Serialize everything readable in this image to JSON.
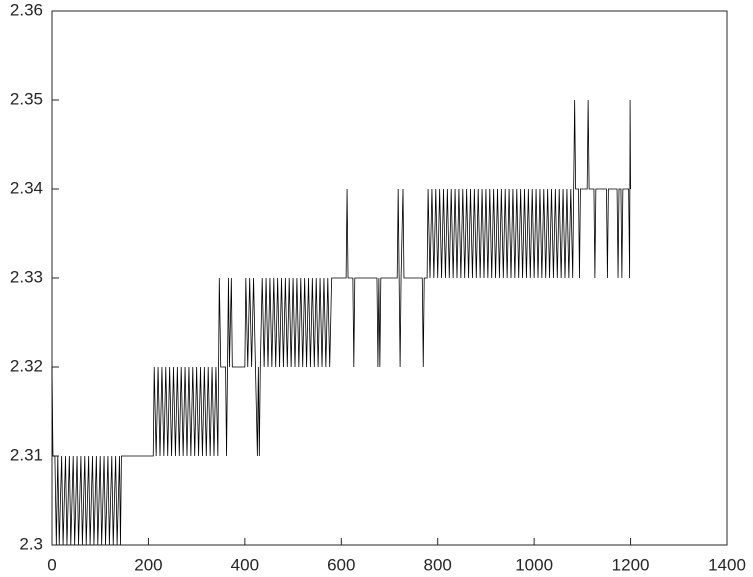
{
  "chart_data": {
    "type": "line",
    "color": "#000000",
    "xlim": [
      0,
      1400
    ],
    "xticks": [
      0,
      200,
      400,
      600,
      800,
      1000,
      1200,
      1400
    ],
    "ylim": [
      2.3,
      2.36
    ],
    "yticks": [
      2.3,
      2.31,
      2.32,
      2.33,
      2.34,
      2.35,
      2.36
    ],
    "grid": false,
    "x": [
      0,
      2,
      6,
      9,
      12,
      15,
      20,
      23,
      28,
      31,
      36,
      39,
      44,
      47,
      52,
      55,
      60,
      63,
      68,
      71,
      76,
      79,
      84,
      87,
      92,
      95,
      100,
      103,
      108,
      111,
      116,
      119,
      124,
      127,
      132,
      135,
      140,
      142,
      144,
      210,
      212,
      216,
      220,
      224,
      228,
      232,
      236,
      240,
      244,
      248,
      252,
      256,
      260,
      264,
      268,
      272,
      276,
      280,
      284,
      288,
      292,
      296,
      300,
      304,
      308,
      312,
      316,
      320,
      324,
      328,
      332,
      336,
      340,
      344,
      347,
      350,
      360,
      362,
      364,
      366,
      368,
      372,
      374,
      400,
      402,
      406,
      410,
      414,
      418,
      422,
      426,
      428,
      430,
      432,
      436,
      440,
      444,
      448,
      452,
      456,
      460,
      464,
      468,
      472,
      476,
      480,
      484,
      488,
      492,
      496,
      500,
      504,
      508,
      512,
      516,
      520,
      524,
      528,
      532,
      536,
      540,
      544,
      548,
      552,
      556,
      560,
      564,
      568,
      572,
      576,
      580,
      610,
      612,
      614,
      624,
      626,
      628,
      674,
      676,
      678,
      680,
      682,
      716,
      718,
      720,
      722,
      724,
      728,
      730,
      768,
      770,
      772,
      778,
      780,
      784,
      788,
      792,
      796,
      800,
      804,
      808,
      812,
      816,
      820,
      824,
      828,
      832,
      836,
      840,
      844,
      848,
      852,
      856,
      860,
      864,
      868,
      872,
      876,
      880,
      884,
      888,
      892,
      896,
      900,
      904,
      908,
      912,
      916,
      920,
      924,
      928,
      932,
      936,
      940,
      944,
      948,
      952,
      956,
      960,
      964,
      968,
      972,
      976,
      980,
      984,
      988,
      992,
      996,
      1000,
      1004,
      1008,
      1012,
      1016,
      1020,
      1024,
      1028,
      1032,
      1036,
      1040,
      1044,
      1048,
      1052,
      1056,
      1060,
      1064,
      1068,
      1072,
      1076,
      1080,
      1084,
      1086,
      1092,
      1094,
      1096,
      1110,
      1112,
      1114,
      1124,
      1126,
      1128,
      1150,
      1152,
      1154,
      1172,
      1174,
      1176,
      1180,
      1182,
      1184,
      1196,
      1198,
      1199,
      1200
    ],
    "values": [
      2.32,
      2.31,
      2.31,
      2.3,
      2.31,
      2.3,
      2.31,
      2.3,
      2.31,
      2.3,
      2.31,
      2.3,
      2.31,
      2.3,
      2.31,
      2.3,
      2.31,
      2.3,
      2.31,
      2.3,
      2.31,
      2.3,
      2.31,
      2.3,
      2.31,
      2.3,
      2.31,
      2.3,
      2.31,
      2.3,
      2.31,
      2.3,
      2.31,
      2.3,
      2.31,
      2.3,
      2.31,
      2.3,
      2.31,
      2.31,
      2.32,
      2.31,
      2.32,
      2.31,
      2.32,
      2.31,
      2.32,
      2.31,
      2.32,
      2.31,
      2.32,
      2.31,
      2.32,
      2.31,
      2.32,
      2.31,
      2.32,
      2.31,
      2.32,
      2.31,
      2.32,
      2.31,
      2.32,
      2.31,
      2.32,
      2.31,
      2.32,
      2.31,
      2.32,
      2.31,
      2.32,
      2.31,
      2.32,
      2.31,
      2.33,
      2.32,
      2.32,
      2.31,
      2.32,
      2.33,
      2.32,
      2.33,
      2.32,
      2.32,
      2.33,
      2.32,
      2.33,
      2.32,
      2.33,
      2.32,
      2.31,
      2.32,
      2.31,
      2.32,
      2.33,
      2.32,
      2.33,
      2.32,
      2.33,
      2.32,
      2.33,
      2.32,
      2.33,
      2.32,
      2.33,
      2.32,
      2.33,
      2.32,
      2.33,
      2.32,
      2.33,
      2.32,
      2.33,
      2.32,
      2.33,
      2.32,
      2.33,
      2.32,
      2.33,
      2.32,
      2.33,
      2.32,
      2.33,
      2.32,
      2.33,
      2.32,
      2.33,
      2.32,
      2.33,
      2.32,
      2.33,
      2.33,
      2.34,
      2.33,
      2.33,
      2.32,
      2.33,
      2.33,
      2.32,
      2.33,
      2.32,
      2.33,
      2.33,
      2.34,
      2.33,
      2.32,
      2.33,
      2.34,
      2.33,
      2.33,
      2.32,
      2.33,
      2.33,
      2.34,
      2.33,
      2.34,
      2.33,
      2.34,
      2.33,
      2.34,
      2.33,
      2.34,
      2.33,
      2.34,
      2.33,
      2.34,
      2.33,
      2.34,
      2.33,
      2.34,
      2.33,
      2.34,
      2.33,
      2.34,
      2.33,
      2.34,
      2.33,
      2.34,
      2.33,
      2.34,
      2.33,
      2.34,
      2.33,
      2.34,
      2.33,
      2.34,
      2.33,
      2.34,
      2.33,
      2.34,
      2.33,
      2.34,
      2.33,
      2.34,
      2.33,
      2.34,
      2.33,
      2.34,
      2.33,
      2.34,
      2.33,
      2.34,
      2.33,
      2.34,
      2.33,
      2.34,
      2.33,
      2.34,
      2.33,
      2.34,
      2.33,
      2.34,
      2.33,
      2.34,
      2.33,
      2.34,
      2.33,
      2.34,
      2.33,
      2.34,
      2.33,
      2.34,
      2.33,
      2.34,
      2.33,
      2.34,
      2.33,
      2.34,
      2.33,
      2.35,
      2.34,
      2.34,
      2.33,
      2.34,
      2.34,
      2.35,
      2.34,
      2.34,
      2.33,
      2.34,
      2.34,
      2.33,
      2.34,
      2.34,
      2.33,
      2.34,
      2.34,
      2.33,
      2.34,
      2.34,
      2.33,
      2.35,
      2.34
    ]
  }
}
